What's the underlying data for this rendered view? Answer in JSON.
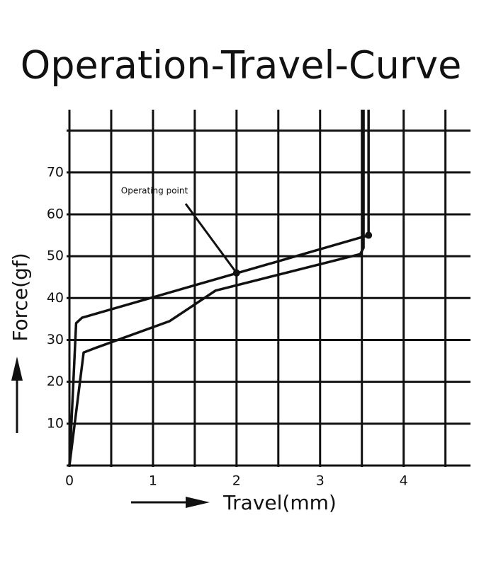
{
  "chart_data": {
    "type": "line",
    "title": "Operation-Travel-Curve",
    "x_label": "Travel(mm)",
    "y_label": "Force(gf)",
    "xlim": [
      0,
      4.8
    ],
    "ylim": [
      0,
      85
    ],
    "xticks": [
      0,
      1,
      2,
      3,
      4
    ],
    "yticks": [
      10,
      20,
      30,
      40,
      50,
      60,
      70
    ],
    "xgrid": [
      0,
      0.5,
      1,
      1.5,
      2,
      2.5,
      3,
      3.5,
      4,
      4.5
    ],
    "ygrid": [
      0,
      10,
      20,
      30,
      40,
      50,
      60,
      70,
      80
    ],
    "color": "#111111",
    "series": [
      {
        "x": [
          0,
          0.08,
          0.15,
          3.58,
          3.58
        ],
        "values": [
          0,
          34,
          35.3,
          55,
          85
        ]
      },
      {
        "x": [
          0,
          0.17,
          0.3,
          1.2,
          1.75,
          3.48,
          3.52,
          3.52
        ],
        "values": [
          0,
          27,
          28,
          34.5,
          41.8,
          50.5,
          52,
          85
        ]
      }
    ],
    "points": [
      {
        "x": 2,
        "y": 46
      },
      {
        "x": 3.58,
        "y": 55
      }
    ],
    "annotation": {
      "text": "Operating point",
      "x": 2,
      "y": 46
    }
  }
}
